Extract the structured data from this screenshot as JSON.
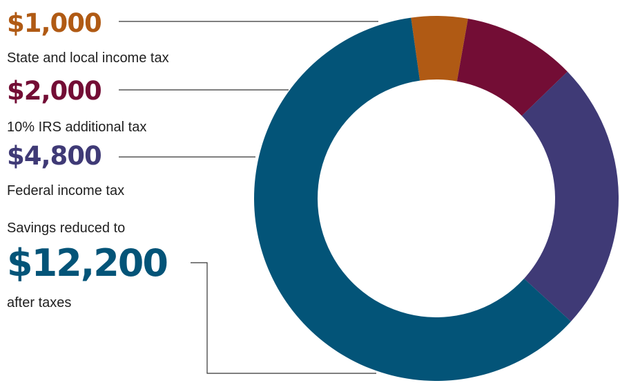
{
  "colors": {
    "state": "#B05A14",
    "irs": "#730D35",
    "federal": "#3F3A76",
    "savings": "#035478",
    "leader": "#333333"
  },
  "labels": {
    "state": {
      "amount": "$1,000",
      "caption": "State and local income tax"
    },
    "irs": {
      "amount": "$2,000",
      "caption": "10% IRS additional tax"
    },
    "federal": {
      "amount": "$4,800",
      "caption": "Federal income tax"
    },
    "savings": {
      "prefix": "Savings reduced to",
      "amount": "$12,200",
      "caption": "after taxes"
    }
  },
  "chart_data": {
    "type": "pie",
    "donut": true,
    "categories": [
      "State and local income tax",
      "10% IRS additional tax",
      "Federal income tax",
      "after taxes"
    ],
    "values": [
      1000,
      2000,
      4800,
      12200
    ],
    "colors": [
      "#B05A14",
      "#730D35",
      "#3F3A76",
      "#035478"
    ]
  }
}
